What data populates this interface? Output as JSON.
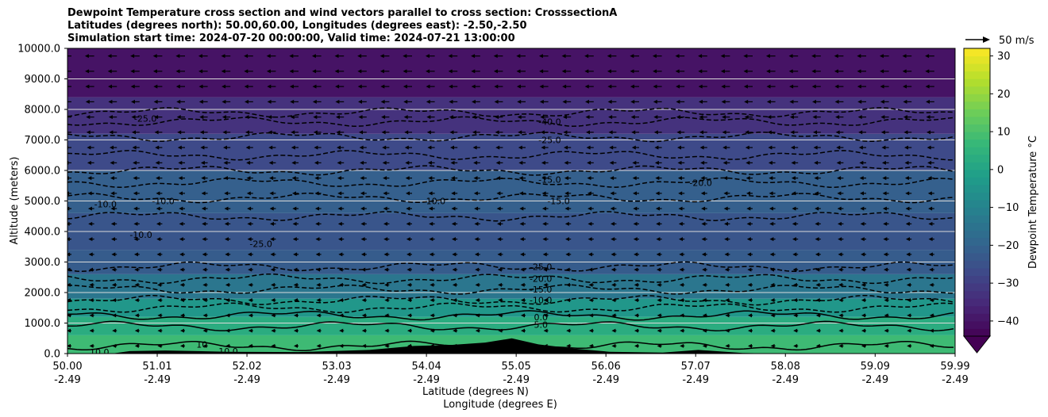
{
  "chart_data": {
    "type": "heatmap",
    "title_lines": [
      "Dewpoint Temperature cross section and wind vectors parallel to cross section: CrosssectionA",
      "Latitudes (degrees north): 50.00,60.00, Longitudes (degrees east): -2.50,-2.50",
      "Simulation start time: 2024-07-20 00:00:00, Valid time: 2024-07-21 13:00:00"
    ],
    "ylabel": "Altitude (meters)",
    "xlabel_lines": [
      "Latitude (degrees N)",
      "Longitude (degrees E)"
    ],
    "ylim": [
      0,
      10000
    ],
    "y_ticks": [
      0,
      1000,
      2000,
      3000,
      4000,
      5000,
      6000,
      7000,
      8000,
      9000,
      10000
    ],
    "y_tick_labels": [
      "0.0",
      "1000.0",
      "2000.0",
      "3000.0",
      "4000.0",
      "5000.0",
      "6000.0",
      "7000.0",
      "8000.0",
      "9000.0",
      "10000.0"
    ],
    "xlim": [
      50.0,
      59.99
    ],
    "x_ticks": [
      50.0,
      51.01,
      52.02,
      53.03,
      54.04,
      55.05,
      56.06,
      57.07,
      58.08,
      59.09,
      59.99
    ],
    "x_tick_lat_labels": [
      "50.00",
      "51.01",
      "52.02",
      "53.03",
      "54.04",
      "55.05",
      "56.06",
      "57.07",
      "58.08",
      "59.09",
      "59.99"
    ],
    "x_tick_lon_labels": [
      "-2.49",
      "-2.49",
      "-2.49",
      "-2.49",
      "-2.49",
      "-2.49",
      "-2.49",
      "-2.49",
      "-2.49",
      "-2.49",
      "-2.49"
    ],
    "colorbar": {
      "label": "Dewpoint Temperature $^\\circ$C",
      "range": [
        -44,
        32
      ],
      "ticks": [
        30,
        20,
        10,
        0,
        -10,
        -20,
        -30,
        -40
      ],
      "tick_labels": [
        "30",
        "20",
        "10",
        "0",
        "−10",
        "−20",
        "−30",
        "−40"
      ],
      "colormap": "viridis",
      "extend": "min"
    },
    "quiver_key": {
      "label": "50 m/s"
    },
    "grid": "horizontal",
    "dewpoint_bands": [
      {
        "altitude_bottom": 0,
        "altitude_top": 600,
        "dewpoint_c": 8
      },
      {
        "altitude_bottom": 600,
        "altitude_top": 1200,
        "dewpoint_c": 3
      },
      {
        "altitude_bottom": 1200,
        "altitude_top": 1800,
        "dewpoint_c": -4
      },
      {
        "altitude_bottom": 1800,
        "altitude_top": 2600,
        "dewpoint_c": -14
      },
      {
        "altitude_bottom": 2600,
        "altitude_top": 3400,
        "dewpoint_c": -22
      },
      {
        "altitude_bottom": 3400,
        "altitude_top": 4600,
        "dewpoint_c": -24
      },
      {
        "altitude_bottom": 4600,
        "altitude_top": 6000,
        "dewpoint_c": -21
      },
      {
        "altitude_bottom": 6000,
        "altitude_top": 7200,
        "dewpoint_c": -27
      },
      {
        "altitude_bottom": 7200,
        "altitude_top": 8400,
        "dewpoint_c": -33
      },
      {
        "altitude_bottom": 8400,
        "altitude_top": 10000,
        "dewpoint_c": -40
      }
    ],
    "contours": [
      {
        "level": "10.0",
        "style": "solid",
        "altitude": 250
      },
      {
        "level": "5.0",
        "style": "solid",
        "altitude": 900
      },
      {
        "level": "0.0",
        "style": "solid",
        "altitude": 1250
      },
      {
        "level": "-5.0",
        "style": "dashed",
        "altitude": 1500
      },
      {
        "level": "-10.0",
        "style": "dashed",
        "altitude": 1750
      },
      {
        "level": "-15.0",
        "style": "dashed",
        "altitude": 2100
      },
      {
        "level": "-20.0",
        "style": "dashed",
        "altitude": 2450
      },
      {
        "level": "-25.0",
        "style": "dashed",
        "altitude": 2850
      },
      {
        "level": "-20.0",
        "style": "dashed",
        "altitude": 4500
      },
      {
        "level": "-15.0",
        "style": "dashed",
        "altitude": 5100
      },
      {
        "level": "-10.0",
        "style": "dashed",
        "altitude": 5600
      },
      {
        "level": "-15.0",
        "style": "dashed",
        "altitude": 6000
      },
      {
        "level": "-20.0",
        "style": "dashed",
        "altitude": 6500
      },
      {
        "level": "-25.0",
        "style": "dashed",
        "altitude": 7100
      },
      {
        "level": "-30.0",
        "style": "dashed",
        "altitude": 7600
      },
      {
        "level": "-40.0",
        "style": "dashed",
        "altitude": 7900
      }
    ],
    "contour_labels": [
      {
        "text": "10.0",
        "lat": 50.25,
        "alt": 50
      },
      {
        "text": "10",
        "lat": 51.45,
        "alt": 300
      },
      {
        "text": "10.0",
        "lat": 51.7,
        "alt": 80
      },
      {
        "text": "5.0",
        "lat": 55.25,
        "alt": 950
      },
      {
        "text": "0.0",
        "lat": 55.25,
        "alt": 1200
      },
      {
        "text": "-10.0",
        "lat": 55.2,
        "alt": 1750
      },
      {
        "text": "-15.0",
        "lat": 55.2,
        "alt": 2100
      },
      {
        "text": "-20.0",
        "lat": 55.2,
        "alt": 2450
      },
      {
        "text": "-25.0",
        "lat": 55.2,
        "alt": 2850
      },
      {
        "text": "-15.0",
        "lat": 55.4,
        "alt": 5000
      },
      {
        "text": "-15.0",
        "lat": 55.3,
        "alt": 5700
      },
      {
        "text": "-25.0",
        "lat": 55.3,
        "alt": 7000
      },
      {
        "text": "-40.0",
        "lat": 55.3,
        "alt": 7600
      },
      {
        "text": "-10.0",
        "lat": 50.3,
        "alt": 4900
      },
      {
        "text": "-10.0",
        "lat": 50.95,
        "alt": 5000
      },
      {
        "text": "-10.0",
        "lat": 50.7,
        "alt": 3900
      },
      {
        "text": "-10.0",
        "lat": 54.0,
        "alt": 5000
      },
      {
        "text": "-25.0",
        "lat": 52.05,
        "alt": 3600
      },
      {
        "text": "-25.0",
        "lat": 50.75,
        "alt": 7700
      },
      {
        "text": "-20.0",
        "lat": 57.0,
        "alt": 5600
      }
    ],
    "terrain": [
      {
        "lat": 50.5,
        "alt": 0
      },
      {
        "lat": 50.7,
        "alt": 80
      },
      {
        "lat": 51.1,
        "alt": 100
      },
      {
        "lat": 51.8,
        "alt": 60
      },
      {
        "lat": 52.6,
        "alt": 50
      },
      {
        "lat": 53.4,
        "alt": 120
      },
      {
        "lat": 53.9,
        "alt": 250
      },
      {
        "lat": 54.3,
        "alt": 280
      },
      {
        "lat": 54.7,
        "alt": 360
      },
      {
        "lat": 55.0,
        "alt": 500
      },
      {
        "lat": 55.3,
        "alt": 300
      },
      {
        "lat": 55.7,
        "alt": 160
      },
      {
        "lat": 56.1,
        "alt": 60
      },
      {
        "lat": 56.7,
        "alt": 30
      },
      {
        "lat": 57.1,
        "alt": 120
      },
      {
        "lat": 57.6,
        "alt": 20
      },
      {
        "lat": 58.0,
        "alt": 0
      }
    ],
    "wind_direction": "toward south (left)",
    "wind_speed_by_altitude": [
      {
        "alt": 500,
        "speed": 3
      },
      {
        "alt": 2000,
        "speed": 4
      },
      {
        "alt": 4000,
        "speed": 6
      },
      {
        "alt": 6000,
        "speed": 8
      },
      {
        "alt": 8000,
        "speed": 12
      },
      {
        "alt": 9500,
        "speed": 14
      }
    ]
  }
}
